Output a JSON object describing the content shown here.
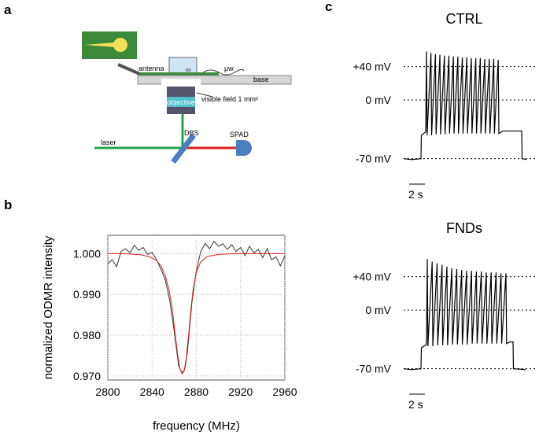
{
  "panel_labels": [
    "a",
    "b",
    "c"
  ],
  "diagram": {
    "antenna": "antenna",
    "nv": "NV",
    "microwave": "μw",
    "base": "base",
    "objective": "objective",
    "visible_field": "visible field 1 mm²",
    "laser": "laser",
    "dbs": "DBS",
    "spad": "SPAD"
  },
  "chart_data": [
    {
      "type": "line",
      "x_label": "frequency (MHz)",
      "y_label": "normalized ODMR intensity",
      "xlim": [
        2800,
        2960
      ],
      "ylim": [
        0.969,
        1.0045
      ],
      "xticks": [
        2800,
        2840,
        2880,
        2920,
        2960
      ],
      "yticks": [
        {
          "value": 0.97,
          "label": "0.970"
        },
        {
          "value": 0.98,
          "label": "0.980"
        },
        {
          "value": 0.99,
          "label": "0.990"
        },
        {
          "value": 1.0,
          "label": "1.000"
        }
      ],
      "grid": true,
      "series": [
        {
          "color": "#333333",
          "x": [
            2800,
            2804,
            2808,
            2812,
            2816,
            2820,
            2824,
            2828,
            2832,
            2836,
            2840,
            2844,
            2848,
            2852,
            2856,
            2860,
            2864,
            2866,
            2868,
            2870,
            2872,
            2876,
            2880,
            2884,
            2888,
            2892,
            2896,
            2900,
            2904,
            2908,
            2912,
            2916,
            2920,
            2924,
            2928,
            2932,
            2936,
            2940,
            2944,
            2948,
            2952,
            2956,
            2960
          ],
          "values": [
            0.9975,
            0.9985,
            0.9968,
            1.0005,
            1.0012,
            1.0002,
            1.002,
            1.0008,
            1.0015,
            0.9998,
            1.0003,
            0.9985,
            0.9962,
            0.9935,
            0.9885,
            0.981,
            0.9725,
            0.9712,
            0.9708,
            0.9722,
            0.976,
            0.988,
            0.9958,
            1.0005,
            1.0025,
            1.0012,
            1.003,
            1.0018,
            1.0024,
            1.001,
            1.0022,
            1.0005,
            1.0015,
            0.9995,
            1.0018,
            1.0002,
            1.001,
            0.999,
            1.0012,
            0.9985,
            0.9992,
            0.997,
            0.9995
          ]
        },
        {
          "color": "#e0201b",
          "x": [
            2800,
            2810,
            2820,
            2830,
            2838,
            2844,
            2848,
            2852,
            2855,
            2858,
            2861,
            2863,
            2865,
            2867,
            2869,
            2871,
            2873,
            2875,
            2877,
            2880,
            2884,
            2890,
            2900,
            2915,
            2930,
            2945,
            2960
          ],
          "values": [
            1.0,
            1.0,
            0.9999,
            0.9997,
            0.9992,
            0.9983,
            0.997,
            0.9945,
            0.9915,
            0.987,
            0.98,
            0.9755,
            0.972,
            0.9705,
            0.9712,
            0.9745,
            0.98,
            0.986,
            0.991,
            0.9955,
            0.998,
            0.9993,
            0.9998,
            1.0,
            1.0,
            1.0,
            1.0
          ]
        }
      ]
    },
    {
      "type": "line",
      "title": "CTRL",
      "xlim": [
        0,
        17
      ],
      "ylim": [
        -75,
        65
      ],
      "yticks": [
        {
          "value": 40,
          "label": "+40 mV"
        },
        {
          "value": 0,
          "label": "0 mV"
        },
        {
          "value": -70,
          "label": "-70 mV"
        }
      ],
      "scale_bar": {
        "value": 2,
        "label": "2 s"
      },
      "series": [
        {
          "color": "#000000",
          "x": [
            0,
            1.0,
            2.2,
            2.25,
            2.8,
            2.9,
            2.98,
            3.47,
            3.55,
            4.04,
            4.12,
            4.61,
            4.69,
            5.18,
            5.26,
            5.75,
            5.83,
            6.32,
            6.4,
            6.89,
            6.97,
            7.46,
            7.54,
            8.03,
            8.11,
            8.6,
            8.68,
            9.17,
            9.25,
            9.74,
            9.82,
            10.31,
            10.39,
            10.88,
            10.96,
            11.45,
            11.53,
            12.02,
            12.1,
            12.6,
            15.0,
            15.05,
            15.6
          ],
          "values": [
            -70,
            -71,
            -70,
            -42,
            -38,
            58,
            -42,
            56,
            -42,
            55,
            -41,
            54,
            -41,
            53,
            -41,
            53,
            -40,
            52,
            -40,
            52,
            -40,
            51,
            -40,
            51,
            -40,
            50,
            -40,
            50,
            -40,
            50,
            -40,
            49,
            -40,
            49,
            -40,
            49,
            -40,
            48,
            -40,
            -37,
            -37,
            -70,
            -71
          ]
        }
      ]
    },
    {
      "type": "line",
      "title": "FNDs",
      "xlim": [
        0,
        17
      ],
      "ylim": [
        -75,
        65
      ],
      "yticks": [
        {
          "value": 40,
          "label": "+40 mV"
        },
        {
          "value": 0,
          "label": "0 mV"
        },
        {
          "value": -70,
          "label": "-70 mV"
        }
      ],
      "scale_bar": {
        "value": 2,
        "label": "2 s"
      },
      "series": [
        {
          "color": "#000000",
          "x": [
            0,
            1.0,
            2.2,
            2.25,
            2.9,
            3.0,
            3.08,
            3.625,
            3.705,
            4.25,
            4.33,
            4.875,
            4.955,
            5.5,
            5.58,
            6.125,
            6.205,
            6.75,
            6.83,
            7.375,
            7.455,
            8.0,
            8.08,
            8.625,
            8.705,
            9.25,
            9.33,
            9.875,
            9.955,
            10.5,
            10.58,
            11.125,
            11.205,
            11.75,
            11.83,
            12.375,
            12.455,
            13.0,
            13.08,
            13.5,
            13.9,
            13.95,
            15.5
          ],
          "values": [
            -70,
            -71,
            -70,
            -45,
            -41,
            61,
            -43,
            58,
            -43,
            56,
            -42,
            54,
            -42,
            52,
            -42,
            50,
            -41,
            49,
            -41,
            48,
            -41,
            47,
            -41,
            47,
            -40,
            46,
            -40,
            46,
            -40,
            45,
            -40,
            45,
            -40,
            45,
            -40,
            44,
            -40,
            44,
            -40,
            -38,
            -38,
            -70,
            -71
          ]
        }
      ]
    }
  ]
}
